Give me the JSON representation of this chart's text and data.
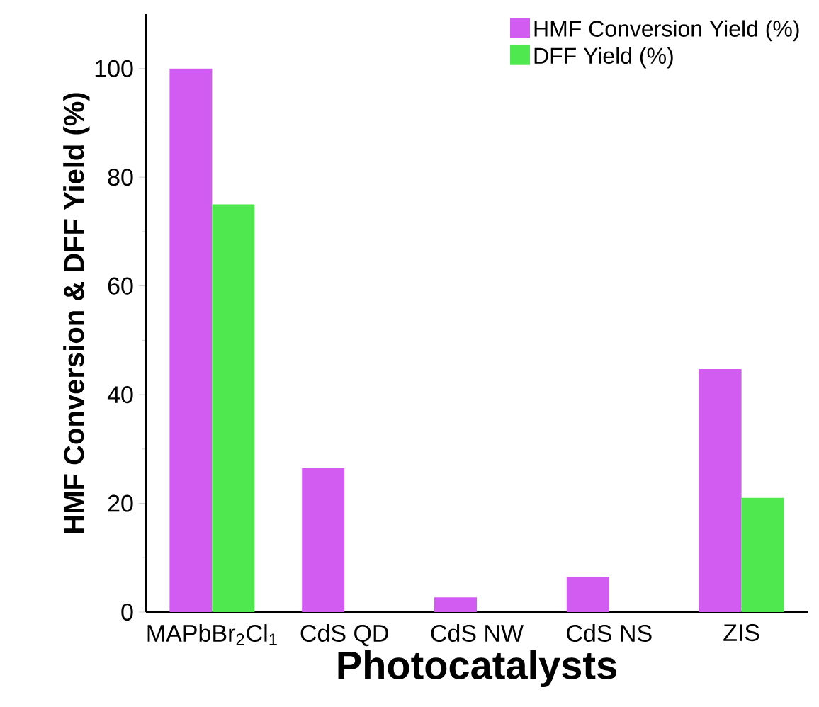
{
  "chart_data": {
    "type": "bar",
    "xlabel": "Photocatalysts",
    "ylabel": "HMF Conversion & DFF Yield (%)",
    "categories": [
      "MAPbBr$_{2}$Cl$_{1}$",
      "CdS QD",
      "CdS NW",
      "CdS NS",
      "ZIS"
    ],
    "series": [
      {
        "name": "HMF Conversion Yield (%)",
        "color": "#d25cf2",
        "values": [
          100,
          26.5,
          2.7,
          6.5,
          44.7
        ]
      },
      {
        "name": "DFF Yield (%)",
        "color": "#4fe84f",
        "values": [
          75,
          0,
          0,
          0,
          21
        ]
      }
    ],
    "ylim": [
      0,
      110
    ],
    "yticks": [
      0,
      20,
      40,
      60,
      80,
      100
    ],
    "legend": "top right"
  }
}
